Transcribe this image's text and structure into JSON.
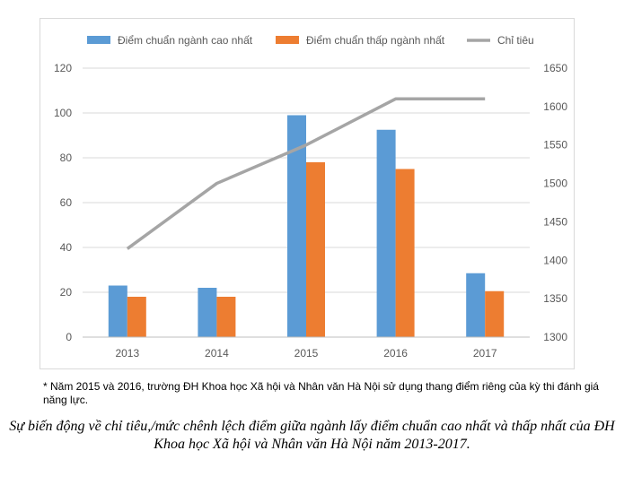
{
  "chart_data": {
    "type": "bar",
    "categories": [
      "2013",
      "2014",
      "2015",
      "2016",
      "2017"
    ],
    "series": [
      {
        "name": "Điểm chuẩn ngành cao nhất",
        "type": "bar",
        "axis": "left",
        "color": "#5b9bd5",
        "values": [
          23,
          22,
          99,
          92.5,
          28.5
        ]
      },
      {
        "name": "Điểm chuẩn thấp ngành nhất",
        "type": "bar",
        "axis": "left",
        "color": "#ed7d31",
        "values": [
          18,
          18,
          78,
          75,
          20.5
        ]
      },
      {
        "name": "Chỉ tiêu",
        "type": "line",
        "axis": "right",
        "color": "#a5a5a5",
        "values": [
          1415,
          1500,
          1550,
          1610,
          1610
        ]
      }
    ],
    "y_left": {
      "ylim": [
        0,
        120
      ],
      "ticks": [
        "0",
        "20",
        "40",
        "60",
        "80",
        "100",
        "120"
      ]
    },
    "y_right": {
      "ylim": [
        1300,
        1650
      ],
      "ticks": [
        "1300",
        "1350",
        "1400",
        "1450",
        "1500",
        "1550",
        "1600",
        "1650"
      ]
    },
    "legend_position": "top",
    "grid": true
  },
  "footnote": "* Năm 2015 và 2016, trường ĐH Khoa học Xã hội và Nhân văn Hà Nội sử dụng thang điểm riêng của kỳ thi đánh giá năng lực.",
  "caption": "Sự biến động về chỉ tiêu,/mức chênh lệch điểm giữa ngành lấy điểm chuẩn cao nhất và thấp nhất của ĐH Khoa học Xã hội và Nhân văn Hà Nội năm 2013-2017."
}
